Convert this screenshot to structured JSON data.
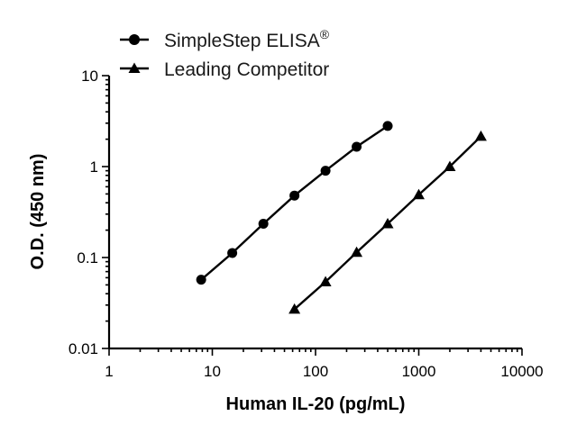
{
  "chart_data": {
    "type": "scatter",
    "xscale": "log",
    "yscale": "log",
    "xlim": [
      1,
      10000
    ],
    "ylim": [
      0.01,
      10
    ],
    "xlabel": "Human IL-20 (pg/mL)",
    "ylabel": "O.D. (450 nm)",
    "xticks": [
      "1",
      "10",
      "100",
      "1000",
      "10000"
    ],
    "yticks": [
      "0.01",
      "0.1",
      "1",
      "10"
    ],
    "grid": false,
    "legend_position": "top-center",
    "series": [
      {
        "name": "SimpleStep ELISA",
        "name_superscript": "®",
        "marker": "circle",
        "color": "#000000",
        "x": [
          7.8,
          15.6,
          31.25,
          62.5,
          125,
          250,
          500
        ],
        "y": [
          0.057,
          0.112,
          0.235,
          0.48,
          0.9,
          1.65,
          2.8
        ]
      },
      {
        "name": "Leading Competitor",
        "marker": "triangle",
        "color": "#000000",
        "x": [
          62.5,
          125,
          250,
          500,
          1000,
          2000,
          4000
        ],
        "y": [
          0.027,
          0.054,
          0.114,
          0.235,
          0.49,
          1.0,
          2.15
        ]
      }
    ]
  }
}
